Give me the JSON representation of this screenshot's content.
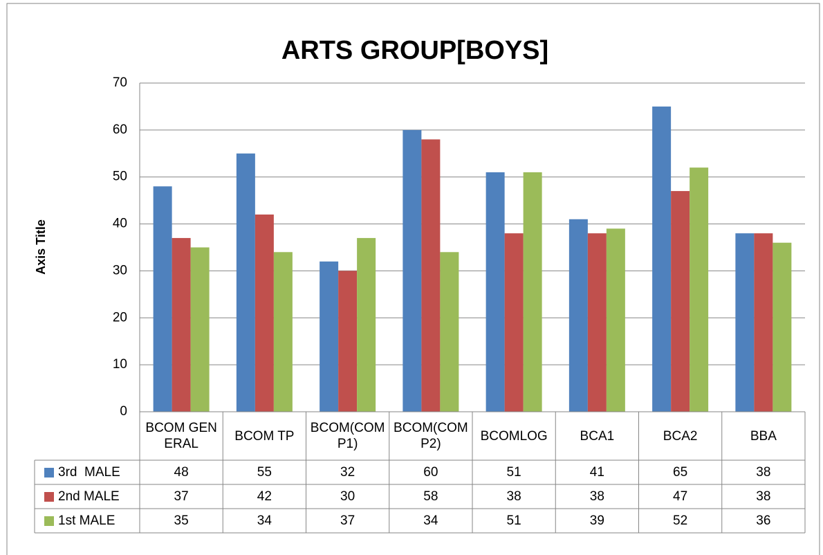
{
  "chart_data": {
    "type": "bar",
    "title": "ARTS GROUP[BOYS]",
    "y_axis_label": "Axis Title",
    "categories": [
      "BCOM GENERAL",
      "BCOM TP",
      "BCOM(COMP1)",
      "BCOM(COMP2)",
      "BCOMLOG",
      "BCA1",
      "BCA2",
      "BBA"
    ],
    "series": [
      {
        "name": "3rd  MALE",
        "color": "#4f81bd",
        "values": [
          48,
          55,
          32,
          60,
          51,
          41,
          65,
          38
        ]
      },
      {
        "name": "2nd MALE",
        "color": "#c0504d",
        "values": [
          37,
          42,
          30,
          58,
          38,
          38,
          47,
          38
        ]
      },
      {
        "name": "1st MALE",
        "color": "#9bbb59",
        "values": [
          35,
          34,
          37,
          34,
          51,
          39,
          52,
          36
        ]
      }
    ],
    "ylim": [
      0,
      70
    ],
    "yticks": [
      0,
      10,
      20,
      30,
      40,
      50,
      60,
      70
    ],
    "grid": true
  }
}
